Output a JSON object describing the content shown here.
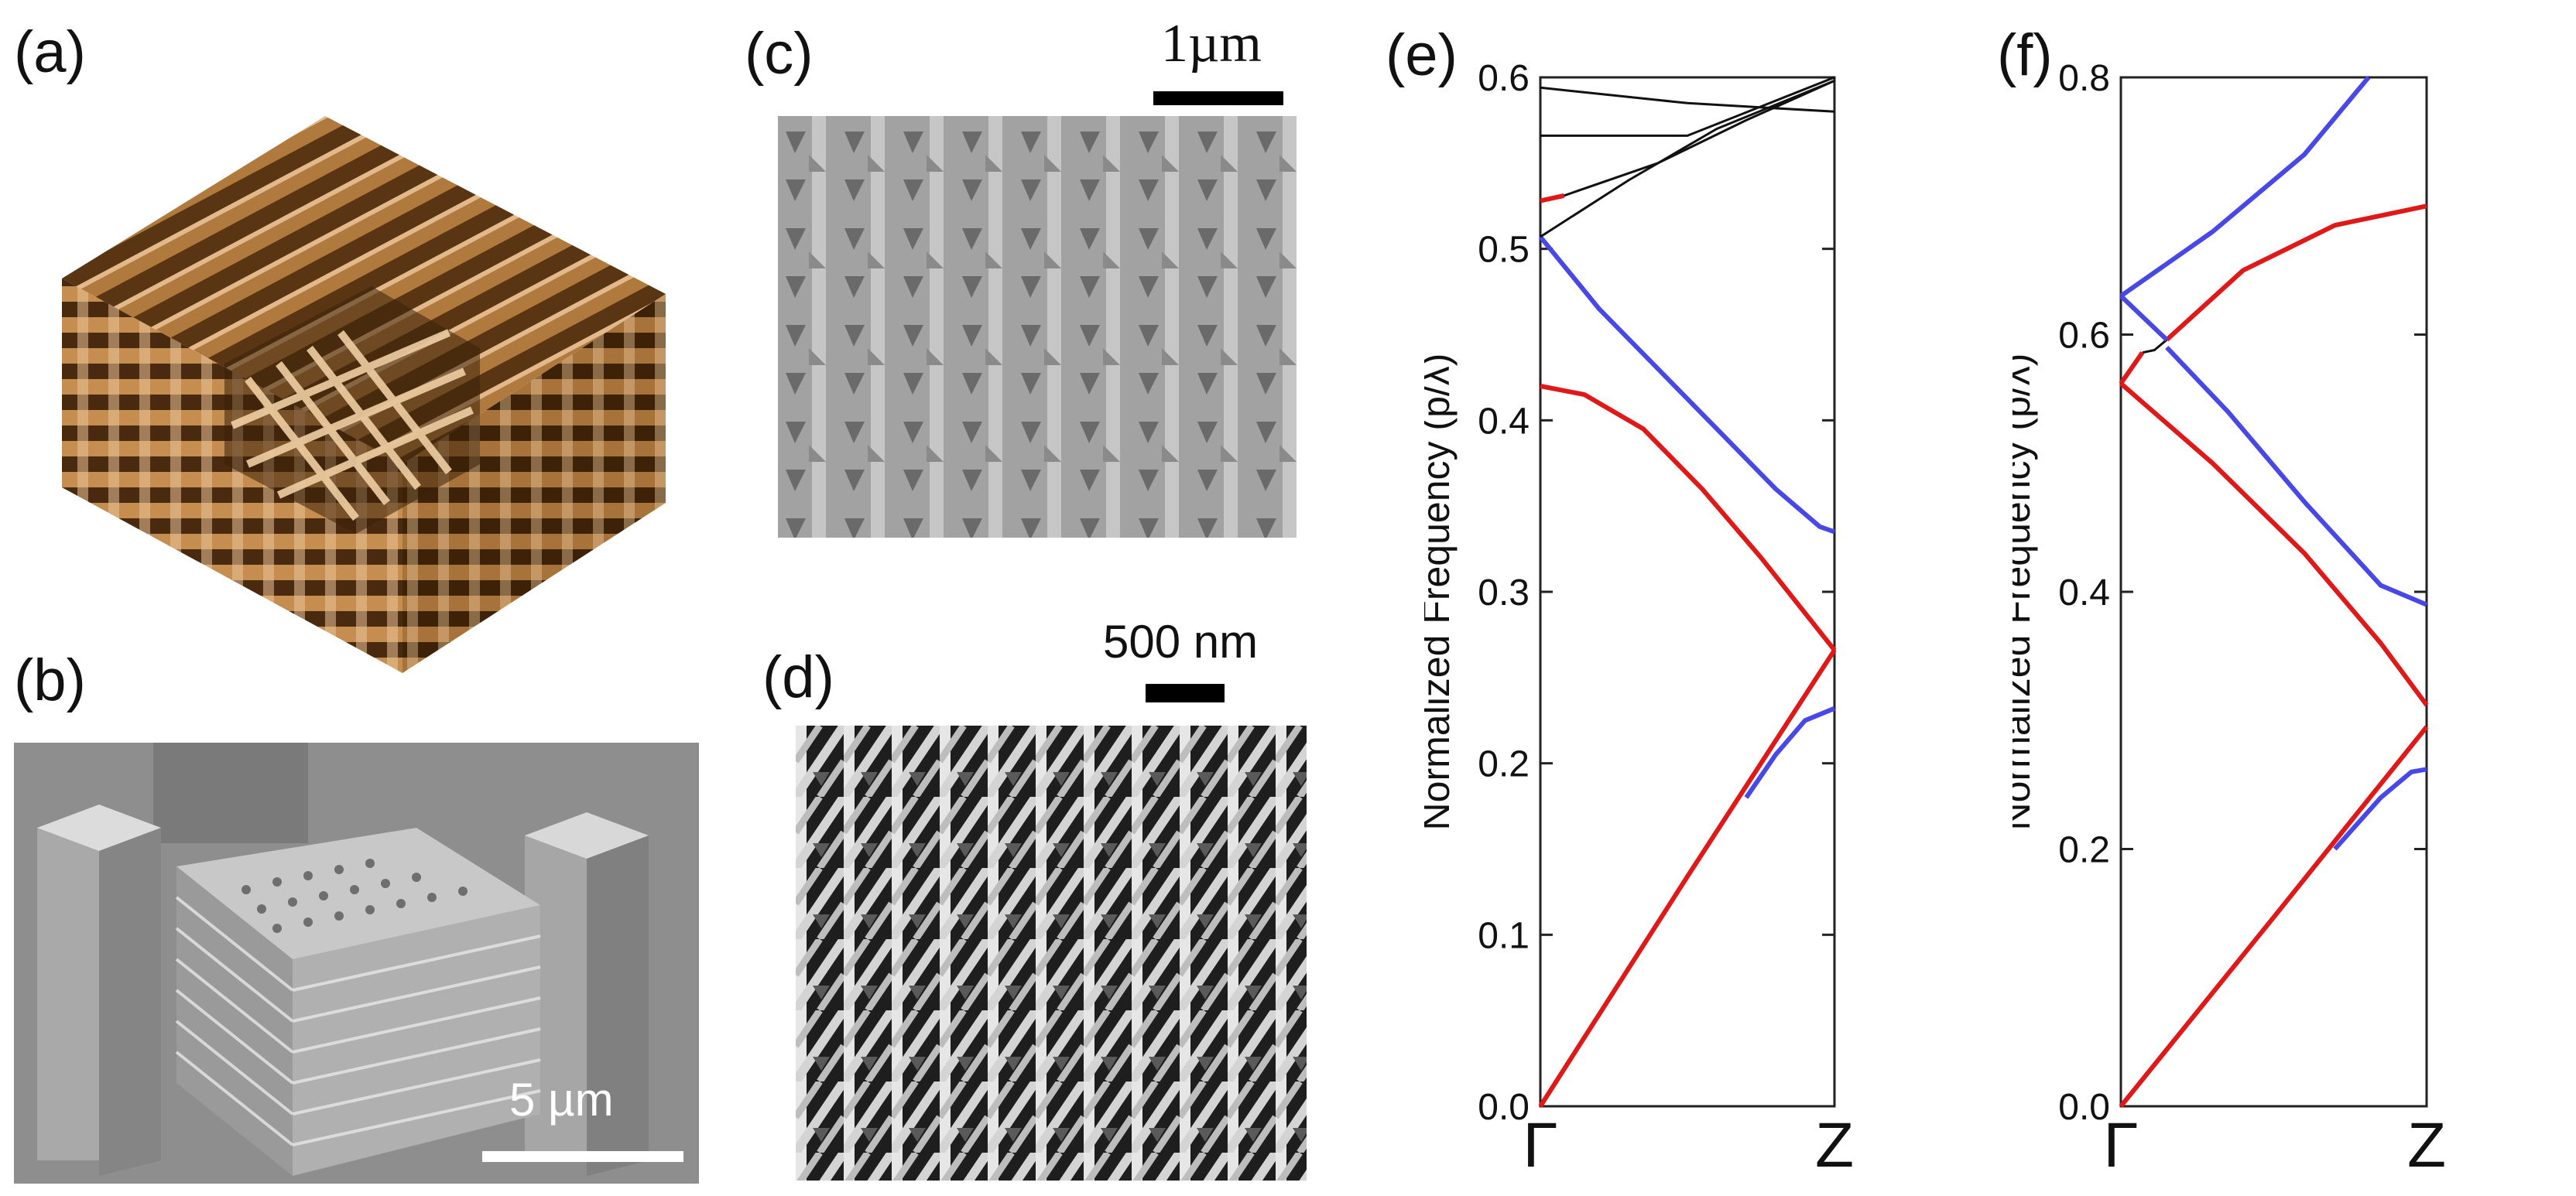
{
  "panels": {
    "a": {
      "label": "(a)",
      "description_icon": "woodpile-3d-model-icon"
    },
    "b": {
      "label": "(b)",
      "scale": "5 µm",
      "description_icon": "sem-woodpile-pillars-icon"
    },
    "c": {
      "label": "(c)",
      "scale": "1µm",
      "description_icon": "sem-top-view-icon"
    },
    "d": {
      "label": "(d)",
      "scale": "500 nm",
      "description_icon": "sem-lattice-icon"
    },
    "e": {
      "label": "(e)"
    },
    "f": {
      "label": "(f)"
    }
  },
  "colors": {
    "red": "#e01818",
    "blue": "#4848e8",
    "black": "#111111",
    "wood": "#b07a3e",
    "wood_light": "#e2b98a"
  },
  "chart_data": [
    {
      "id": "e",
      "type": "line",
      "title": "",
      "xlabel": "",
      "ylabel": "Normalized Frequency (p/λ)",
      "x_ticks": [
        "Γ",
        "Z"
      ],
      "xlim": [
        0,
        1
      ],
      "ylim": [
        0,
        0.6
      ],
      "yticks": [
        "0.0",
        "0.1",
        "0.2",
        "0.3",
        "0.4",
        "0.5",
        "0.6"
      ],
      "series": [
        {
          "name": "red-acoustic",
          "color": "red",
          "x": [
            0,
            0.25,
            0.5,
            0.75,
            1.0
          ],
          "y": [
            0.0,
            0.067,
            0.134,
            0.2,
            0.266
          ]
        },
        {
          "name": "blue-acoustic",
          "color": "blue",
          "x": [
            0.7,
            0.8,
            0.9,
            1.0
          ],
          "y": [
            0.18,
            0.205,
            0.225,
            0.232
          ]
        },
        {
          "name": "red-optical",
          "color": "red",
          "x": [
            0,
            0.15,
            0.35,
            0.55,
            0.75,
            1.0
          ],
          "y": [
            0.42,
            0.415,
            0.395,
            0.36,
            0.32,
            0.266
          ]
        },
        {
          "name": "blue-optical",
          "color": "blue",
          "x": [
            0,
            0.2,
            0.4,
            0.6,
            0.8,
            0.95,
            1.0
          ],
          "y": [
            0.507,
            0.465,
            0.43,
            0.395,
            0.36,
            0.338,
            0.335
          ]
        },
        {
          "name": "red-upper",
          "color": "red",
          "x": [
            0,
            0.08
          ],
          "y": [
            0.528,
            0.531
          ]
        },
        {
          "name": "black-1",
          "color": "black",
          "x": [
            0,
            0.3,
            0.6,
            1.0
          ],
          "y": [
            0.507,
            0.54,
            0.57,
            0.598
          ]
        },
        {
          "name": "black-2",
          "color": "black",
          "x": [
            0.08,
            0.4,
            0.7,
            1.0
          ],
          "y": [
            0.531,
            0.55,
            0.575,
            0.598
          ]
        },
        {
          "name": "black-3",
          "color": "black",
          "x": [
            0,
            0.5,
            1.0
          ],
          "y": [
            0.566,
            0.566,
            0.6
          ]
        },
        {
          "name": "black-4",
          "color": "black",
          "x": [
            0,
            0.5,
            1.0
          ],
          "y": [
            0.594,
            0.585,
            0.58
          ]
        }
      ]
    },
    {
      "id": "f",
      "type": "line",
      "title": "",
      "xlabel": "",
      "ylabel": "Normalized Frequency (p/λ)",
      "x_ticks": [
        "Γ",
        "Z"
      ],
      "xlim": [
        0,
        1
      ],
      "ylim": [
        0,
        0.8
      ],
      "yticks": [
        "0.0",
        "0.2",
        "0.4",
        "0.6",
        "0.8"
      ],
      "series": [
        {
          "name": "red-acoustic",
          "color": "red",
          "x": [
            0,
            0.5,
            1.0
          ],
          "y": [
            0.0,
            0.147,
            0.295
          ]
        },
        {
          "name": "blue-acoustic",
          "color": "blue",
          "x": [
            0.7,
            0.85,
            0.95,
            1.0
          ],
          "y": [
            0.2,
            0.24,
            0.26,
            0.262
          ]
        },
        {
          "name": "red-optical",
          "color": "red",
          "x": [
            0,
            0.3,
            0.6,
            0.85,
            1.0
          ],
          "y": [
            0.562,
            0.5,
            0.43,
            0.36,
            0.312
          ]
        },
        {
          "name": "blue-optical",
          "color": "blue",
          "x": [
            0.15,
            0.35,
            0.6,
            0.85,
            1.0
          ],
          "y": [
            0.59,
            0.54,
            0.47,
            0.405,
            0.39
          ]
        },
        {
          "name": "black-gap",
          "color": "black",
          "x": [
            0.07,
            0.11,
            0.15
          ],
          "y": [
            0.586,
            0.588,
            0.596
          ]
        },
        {
          "name": "red-upper",
          "color": "red",
          "x": [
            0,
            0.07
          ],
          "y": [
            0.562,
            0.586
          ]
        },
        {
          "name": "red-upper-2",
          "color": "red",
          "x": [
            0.15,
            0.4,
            0.7,
            1.0
          ],
          "y": [
            0.596,
            0.65,
            0.685,
            0.7
          ]
        },
        {
          "name": "blue-upper",
          "color": "blue",
          "x": [
            0,
            0.15
          ],
          "y": [
            0.63,
            0.596
          ]
        },
        {
          "name": "blue-upper-2",
          "color": "blue",
          "x": [
            0,
            0.3,
            0.6,
            0.81
          ],
          "y": [
            0.63,
            0.68,
            0.74,
            0.8
          ]
        }
      ]
    }
  ]
}
